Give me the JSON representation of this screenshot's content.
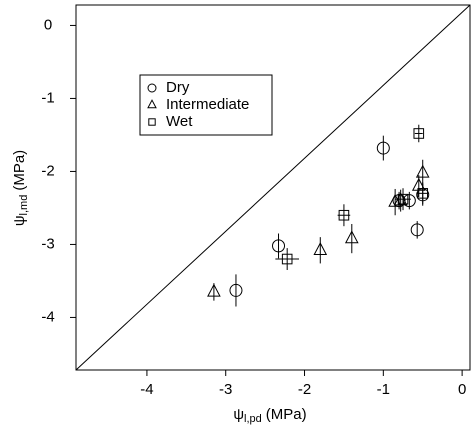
{
  "chart_data": {
    "type": "scatter",
    "x_label": {
      "symbol": "ψ",
      "subscript": "l,pd",
      "unit": "(MPa)"
    },
    "y_label": {
      "symbol": "ψ",
      "subscript": "l,md",
      "unit": "(MPa)"
    },
    "xlim": [
      -4.9,
      0.1
    ],
    "ylim": [
      -4.72,
      0.28
    ],
    "xticks": [
      -4,
      -3,
      -2,
      -1,
      0
    ],
    "yticks": [
      -4,
      -3,
      -2,
      -1,
      0
    ],
    "legend": "upper left",
    "series": [
      {
        "name": "Dry",
        "marker": "circle",
        "color": "#000000",
        "x": [
          -1.0,
          -2.33,
          -2.87,
          -0.67,
          -0.57,
          -0.5,
          -0.8
        ],
        "values": [
          -1.68,
          -3.02,
          -3.63,
          -2.4,
          -2.8,
          -2.32,
          -2.4
        ],
        "yerr": [
          0.17,
          0.17,
          0.22,
          0.12,
          0.12,
          0.15,
          0.12
        ]
      },
      {
        "name": "Intermediate",
        "marker": "triangle",
        "color": "#000000",
        "x": [
          -3.15,
          -1.8,
          -1.4,
          -0.85,
          -0.78,
          -0.5,
          -0.55
        ],
        "values": [
          -3.65,
          -3.08,
          -2.92,
          -2.42,
          -2.4,
          -2.02,
          -2.2
        ],
        "yerr": [
          0.12,
          0.18,
          0.2,
          0.18,
          0.15,
          0.18,
          0.15
        ]
      },
      {
        "name": "Wet",
        "marker": "square",
        "color": "#000000",
        "x": [
          -1.5,
          -2.22,
          -0.55,
          -0.75,
          -0.5
        ],
        "values": [
          -2.6,
          -3.2,
          -1.48,
          -2.38,
          -2.3
        ],
        "yerr": [
          0.15,
          0.15,
          0.12,
          0.15,
          0.15
        ],
        "xerr": [
          0.08,
          0.15,
          0.05,
          0.1,
          0.08
        ]
      }
    ]
  }
}
